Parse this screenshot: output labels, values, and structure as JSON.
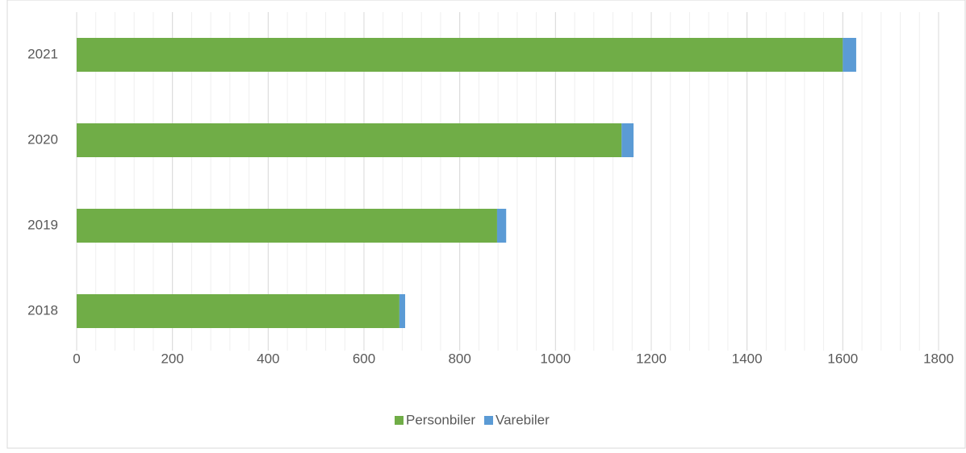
{
  "chart_data": {
    "type": "stacked_barh",
    "categories": [
      "2018",
      "2019",
      "2020",
      "2021"
    ],
    "series": [
      {
        "name": "Personbiler",
        "color": "#70ad47",
        "values": [
          674,
          878,
          1138,
          1600
        ]
      },
      {
        "name": "Varebiler",
        "color": "#5b9bd5",
        "values": [
          12,
          19,
          25,
          28
        ]
      }
    ],
    "xlim": [
      0,
      1800
    ],
    "xticks": [
      0,
      200,
      400,
      600,
      800,
      1000,
      1200,
      1400,
      1600,
      1800
    ],
    "grid": true,
    "minor_grid_step": 40,
    "legend": "bottom"
  }
}
